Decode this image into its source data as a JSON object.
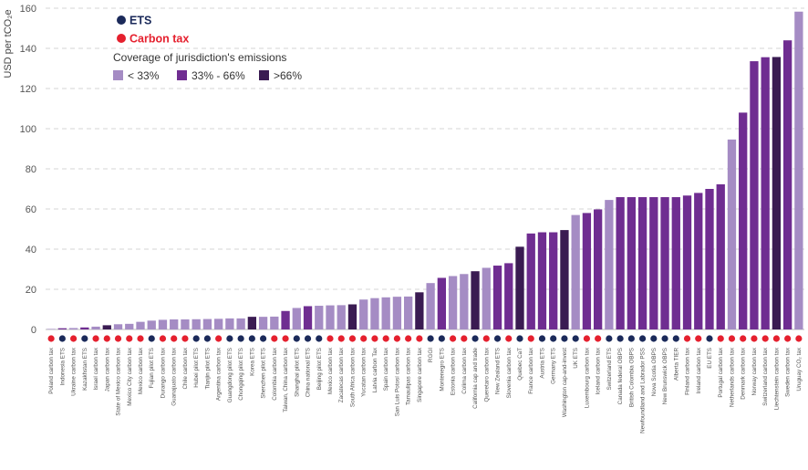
{
  "chart_data": {
    "type": "bar",
    "ylabel": "USD per tCO₂e",
    "ylim": [
      0,
      160
    ],
    "yticks": [
      0,
      20,
      40,
      60,
      80,
      100,
      120,
      140,
      160
    ],
    "grid": "horizontal dashed",
    "legend": {
      "placement": "top-left",
      "types": [
        {
          "key": "ETS",
          "label": "ETS",
          "color": "#1b2a5a"
        },
        {
          "key": "tax",
          "label": "Carbon tax",
          "color": "#e5202e"
        }
      ],
      "coverage_title": "Coverage of jurisdiction's emissions",
      "coverage": [
        {
          "key": "low",
          "label": "< 33%",
          "color": "#a58cc4"
        },
        {
          "key": "mid",
          "label": "33% - 66%",
          "color": "#6f2d91"
        },
        {
          "key": "high",
          "label": ">66%",
          "color": "#3a1b52"
        }
      ]
    },
    "categories": [
      "Poland carbon tax",
      "Indonesia ETS",
      "Ukraine carbon tax",
      "Kazakhstan ETS",
      "Israel carbon tax",
      "Japan carbon tax",
      "State of Mexico carbon tax",
      "Mexico City carbon tax",
      "Mexico carbon tax",
      "Fujian pilot ETS",
      "Durango carbon tax",
      "Guanajuato carbon tax",
      "Chile carbon tax",
      "Hubei pilot ETS",
      "Tianjin pilot ETS",
      "Argentina carbon tax",
      "Guangdong pilot ETS",
      "Chongqing pilot ETS",
      "Korea ETS",
      "Shenzhen pilot ETS",
      "Colombia carbon tax",
      "Taiwan, China carbon tax",
      "Shanghai pilot ETS",
      "China national ETS",
      "Beijing pilot ETS",
      "Mexico carbon tax",
      "Zacatecas carbon tax",
      "South Africa carbon tax",
      "Yucatan carbon tax",
      "Latvia carbon Tax",
      "Spain carbon tax",
      "San Luis Potosí carbon tax",
      "Tamaulipas carbon tax",
      "Singapore carbon tax",
      "RGGI",
      "Montenegro ETS",
      "Estonia carbon tax",
      "Colima carbon tax",
      "California cap and trade",
      "Queretaro carbon tax",
      "New Zealand ETS",
      "Slovenia carbon tax",
      "Quebec CaT",
      "France carbon tax",
      "Austria ETS",
      "Germany ETS",
      "Washington cap-and-invest",
      "UK ETS",
      "Luxembourg carbon tax",
      "Iceland carbon tax",
      "Switzerland ETS",
      "Canada federal OBPS",
      "British Colombia OBPS",
      "Newfoundland and Labrador PSS",
      "Nova Scotia OBPS",
      "New Brunswick OBPS",
      "Alberta TIER",
      "Finland carbon tax",
      "Ireland carbon tax",
      "EU ETS",
      "Portugal carbon tax",
      "Netherlands carbon tax",
      "Denmark carbon tax",
      "Norway carbon tax",
      "Switzerland carbon tax",
      "Liechtenstein carbon tax",
      "Sweden carbon tax",
      "Uruguay CO₂ tax"
    ],
    "values": [
      0.1,
      0.6,
      0.7,
      1.0,
      1.4,
      2.1,
      2.6,
      2.8,
      3.8,
      4.4,
      4.8,
      5.0,
      5.0,
      5.1,
      5.2,
      5.3,
      5.5,
      5.5,
      6.3,
      6.3,
      6.4,
      9.2,
      10.7,
      11.6,
      11.8,
      12.0,
      12.1,
      12.5,
      14.9,
      15.6,
      16.0,
      16.3,
      16.4,
      18.5,
      23.1,
      25.7,
      26.6,
      27.6,
      29.0,
      30.7,
      31.8,
      33.0,
      41.2,
      47.8,
      48.4,
      48.4,
      49.5,
      57.0,
      58.0,
      59.8,
      64.5,
      65.9,
      65.9,
      65.9,
      65.9,
      65.9,
      65.9,
      66.7,
      68.0,
      70.0,
      72.3,
      94.6,
      108.0,
      133.6,
      135.6,
      135.7,
      144.0,
      158.3
    ],
    "mechanism": [
      "tax",
      "ETS",
      "tax",
      "ETS",
      "tax",
      "tax",
      "tax",
      "tax",
      "tax",
      "ETS",
      "tax",
      "tax",
      "tax",
      "ETS",
      "ETS",
      "tax",
      "ETS",
      "ETS",
      "ETS",
      "ETS",
      "tax",
      "tax",
      "ETS",
      "ETS",
      "ETS",
      "tax",
      "tax",
      "tax",
      "tax",
      "tax",
      "tax",
      "tax",
      "tax",
      "tax",
      "ETS",
      "ETS",
      "tax",
      "tax",
      "ETS",
      "tax",
      "ETS",
      "tax",
      "ETS",
      "tax",
      "ETS",
      "ETS",
      "ETS",
      "ETS",
      "tax",
      "tax",
      "ETS",
      "ETS",
      "ETS",
      "ETS",
      "ETS",
      "ETS",
      "ETS",
      "tax",
      "tax",
      "ETS",
      "tax",
      "tax",
      "tax",
      "tax",
      "tax",
      "tax",
      "tax",
      "tax"
    ],
    "coverage": [
      "low",
      "mid",
      "low",
      "mid",
      "low",
      "high",
      "low",
      "low",
      "low",
      "low",
      "low",
      "low",
      "low",
      "low",
      "low",
      "low",
      "low",
      "low",
      "high",
      "low",
      "low",
      "mid",
      "low",
      "mid",
      "low",
      "low",
      "low",
      "high",
      "low",
      "low",
      "low",
      "low",
      "low",
      "high",
      "low",
      "mid",
      "low",
      "low",
      "high",
      "low",
      "mid",
      "mid",
      "high",
      "mid",
      "mid",
      "mid",
      "high",
      "low",
      "mid",
      "mid",
      "low",
      "mid",
      "mid",
      "mid",
      "mid",
      "mid",
      "mid",
      "mid",
      "mid",
      "mid",
      "mid",
      "low",
      "mid",
      "mid",
      "mid",
      "high",
      "mid",
      "low"
    ]
  }
}
